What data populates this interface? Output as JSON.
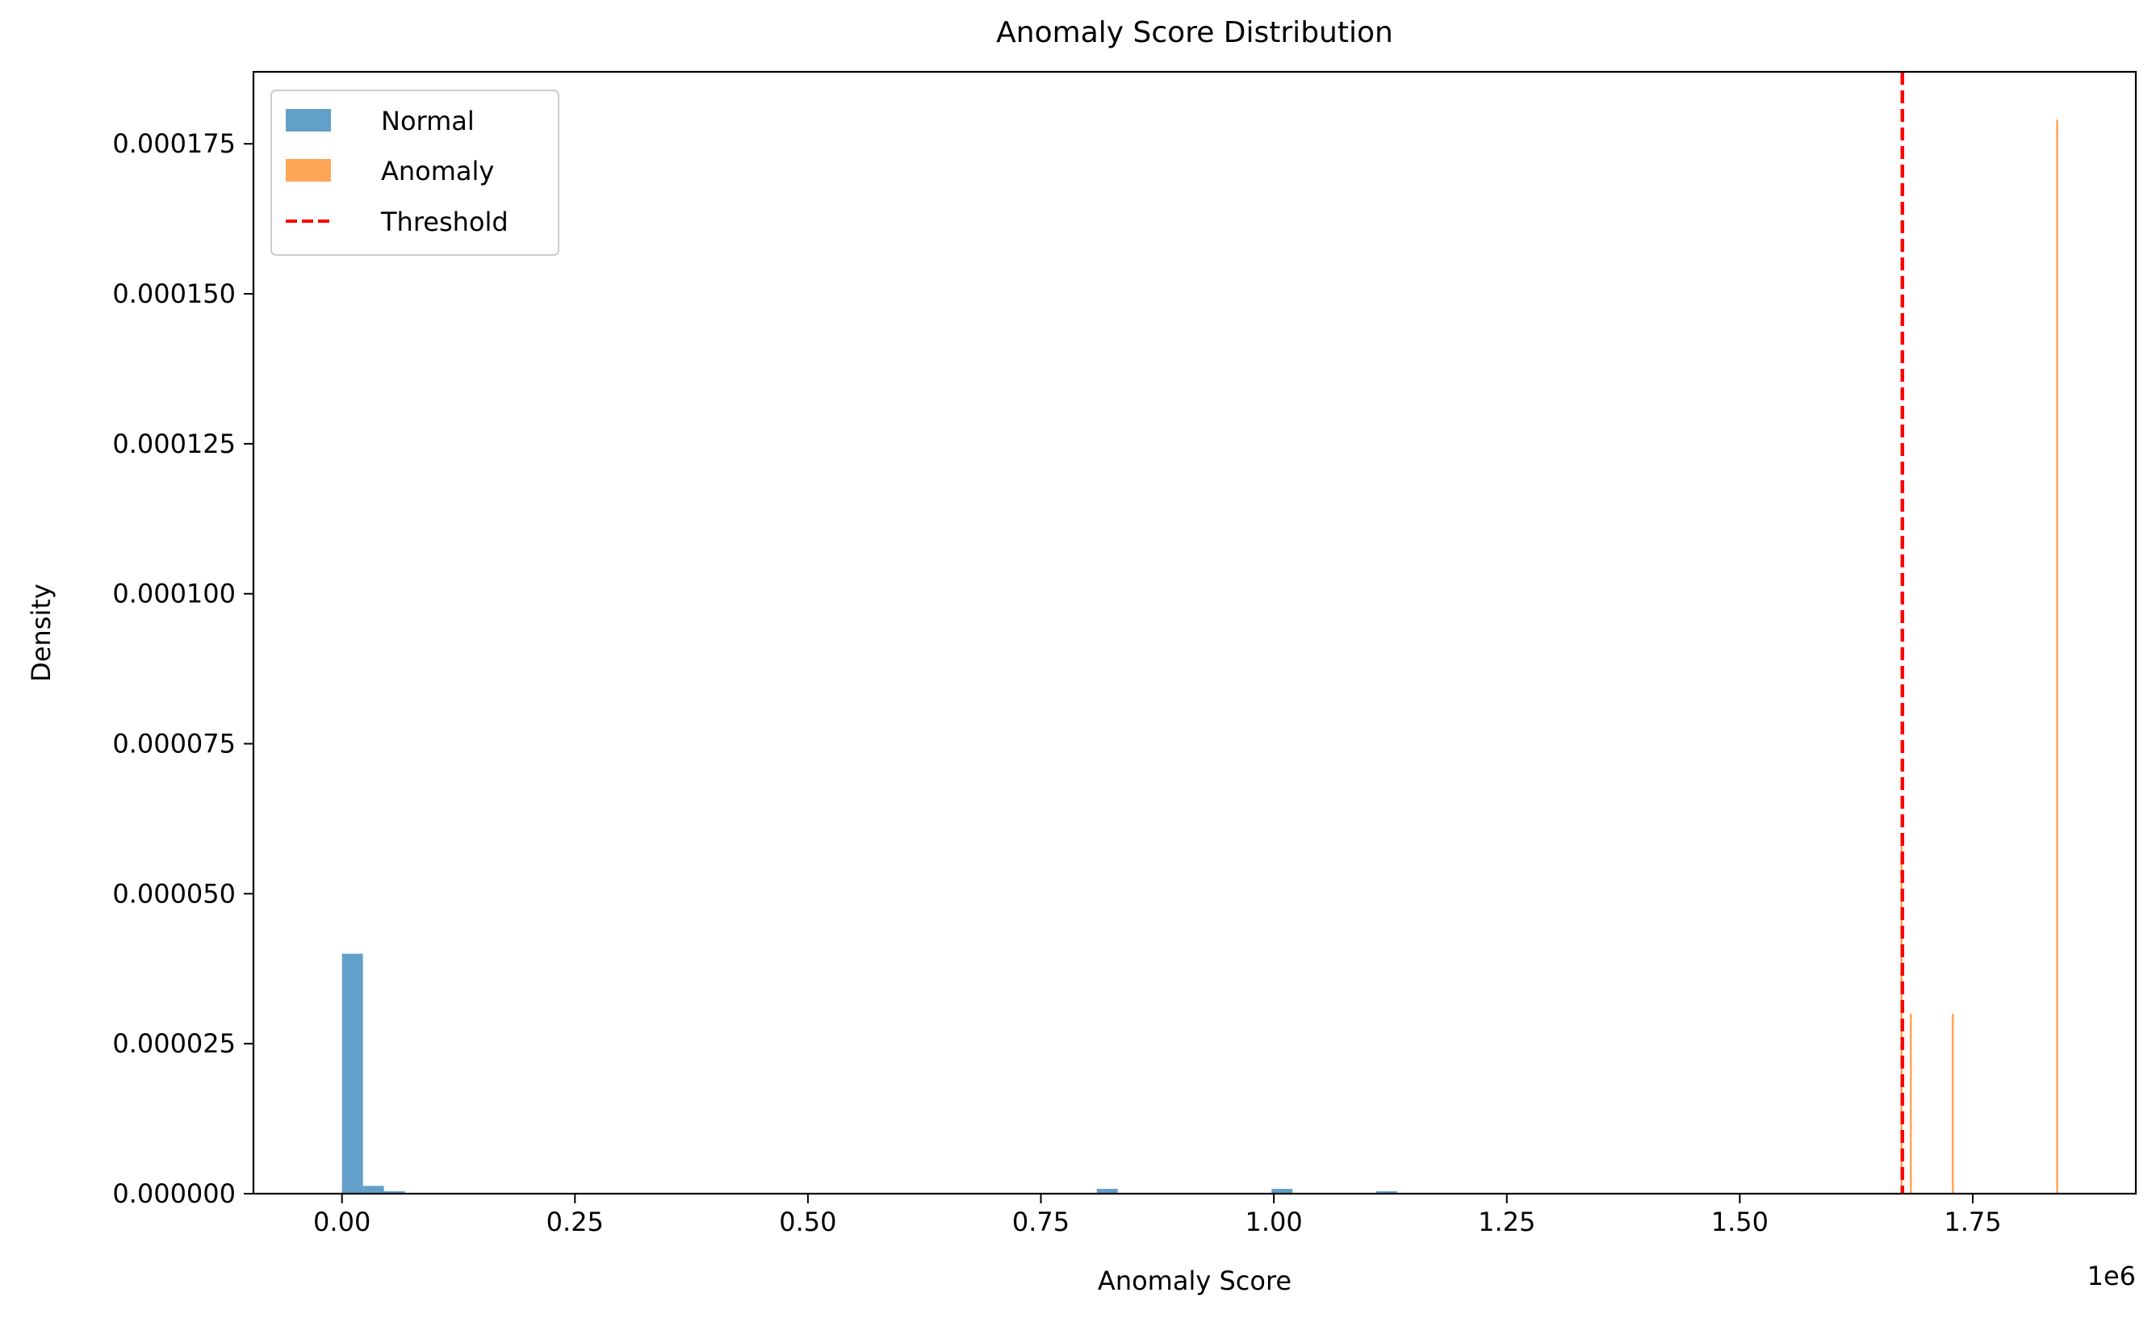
{
  "chart_data": {
    "type": "histogram",
    "title": "Anomaly Score Distribution",
    "xlabel": "Anomaly Score",
    "ylabel": "Density",
    "x_offset_label": "1e6",
    "x_scale": 1000000,
    "xlim": [
      -0.095,
      1.925
    ],
    "ylim": [
      0,
      0.000187
    ],
    "xticks": [
      0.0,
      0.25,
      0.5,
      0.75,
      1.0,
      1.25,
      1.5,
      1.75
    ],
    "xtick_labels": [
      "0.00",
      "0.25",
      "0.50",
      "0.75",
      "1.00",
      "1.25",
      "1.50",
      "1.75"
    ],
    "yticks": [
      0,
      2.5e-05,
      5e-05,
      7.5e-05,
      0.0001,
      0.000125,
      0.00015,
      0.000175
    ],
    "ytick_labels": [
      "0.000000",
      "0.000025",
      "0.000050",
      "0.000075",
      "0.000100",
      "0.000125",
      "0.000150",
      "0.000175"
    ],
    "grid": false,
    "legend_position": "upper-left",
    "series": [
      {
        "name": "Normal",
        "color": "#1f77b4",
        "opacity": 0.7,
        "bins": [
          {
            "x0": 0.0,
            "x1": 0.0225,
            "y": 4e-05
          },
          {
            "x0": 0.0225,
            "x1": 0.045,
            "y": 1.3e-06
          },
          {
            "x0": 0.045,
            "x1": 0.0675,
            "y": 4e-07
          },
          {
            "x0": 0.81,
            "x1": 0.8325,
            "y": 8e-07
          },
          {
            "x0": 0.9975,
            "x1": 1.02,
            "y": 8e-07
          },
          {
            "x0": 1.11,
            "x1": 1.1325,
            "y": 4e-07
          }
        ]
      },
      {
        "name": "Anomaly",
        "color": "#ff7f0e",
        "opacity": 0.7,
        "bins": [
          {
            "x0": 1.6725,
            "x1": 1.6745,
            "y": 6e-05
          },
          {
            "x0": 1.6825,
            "x1": 1.6845,
            "y": 3e-05
          },
          {
            "x0": 1.7275,
            "x1": 1.7295,
            "y": 3e-05
          },
          {
            "x0": 1.8395,
            "x1": 1.8415,
            "y": 0.000179
          }
        ]
      }
    ],
    "threshold": {
      "name": "Threshold",
      "x": 1.6745,
      "color": "#ff0000",
      "style": "dashed"
    }
  }
}
